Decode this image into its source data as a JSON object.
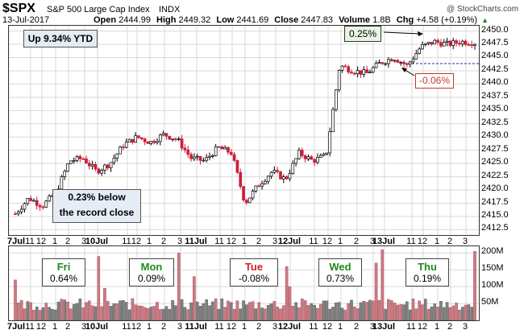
{
  "header": {
    "symbol": "$SPX",
    "name": "S&P 500 Large Cap Index",
    "exchange": "INDX",
    "date": "13-Jul-2017",
    "open_label": "Open",
    "open": "2444.99",
    "high_label": "High",
    "high": "2449.32",
    "low_label": "Low",
    "low": "2441.69",
    "close_label": "Close",
    "close": "2447.83",
    "volume_label": "Volume",
    "volume": "1.8B",
    "chg_label": "Chg",
    "chg": "+4.58 (+0.19%)",
    "watermark": "@ StockCharts.com"
  },
  "annotations": {
    "ytd": "Up 9.34% YTD",
    "record_line1": "0.23% below",
    "record_line2": "the record close",
    "gain_box": "0.25%",
    "loss_box": "-0.06%"
  },
  "day_boxes": [
    {
      "day": "Fri",
      "value": "0.64%",
      "color": "green"
    },
    {
      "day": "Mon",
      "value": "0.09%",
      "color": "green"
    },
    {
      "day": "Tue",
      "value": "-0.08%",
      "color": "red"
    },
    {
      "day": "Wed",
      "value": "0.73%",
      "color": "green"
    },
    {
      "day": "Thu",
      "value": "0.19%",
      "color": "green"
    }
  ],
  "colors": {
    "up": "#000000",
    "down": "#cc1f3a",
    "vol_up": "#808080",
    "vol_down": "#c97a82",
    "green_text": "#1e8a1e",
    "red_text": "#d32020",
    "dash": "#1f2ea8"
  },
  "chart_data": [
    {
      "type": "candlestick",
      "title": "$SPX S&P 500 Large Cap Index INDX",
      "ylim": [
        2411.5,
        2451
      ],
      "yticks": [
        "2412.5",
        "2415.0",
        "2417.5",
        "2420.0",
        "2422.5",
        "2425.0",
        "2427.5",
        "2430.0",
        "2432.5",
        "2435.0",
        "2437.5",
        "2440.0",
        "2442.5",
        "2445.0",
        "2447.5",
        "2450.0"
      ],
      "xticks": [
        "7Jul",
        "11",
        "12",
        "1",
        "2",
        "3",
        "10Jul",
        "11",
        "12",
        "1",
        "2",
        "3",
        "11Jul",
        "11",
        "12",
        "1",
        "2",
        "3",
        "12Jul",
        "11",
        "12",
        "1",
        "2",
        "3",
        "13Jul",
        "11",
        "12",
        "1",
        "2",
        "3"
      ],
      "reference_line": 2443.1,
      "days": [
        "7-Jul",
        "10-Jul",
        "11-Jul",
        "12-Jul",
        "13-Jul"
      ],
      "day_closes": [
        2425.2,
        2427.4,
        2425.5,
        2443.3,
        2447.8
      ],
      "path_points": [
        2415.5,
        2418.5,
        2417.0,
        2419.5,
        2425.5,
        2426.0,
        2423.5,
        2425.0,
        2428.5,
        2430.0,
        2429.0,
        2430.5,
        2429.5,
        2426.0,
        2425.5,
        2428.0,
        2427.0,
        2417.5,
        2421.0,
        2423.5,
        2422.0,
        2427.0,
        2425.5,
        2426.5,
        2443.5,
        2442.5,
        2442.0,
        2444.0,
        2445.0,
        2443.5,
        2447.0,
        2448.0,
        2447.5,
        2448.0,
        2447.8
      ],
      "marked_highs": [
        {
          "label": "0.25%",
          "value": 2448.6
        },
        {
          "label": "-0.06%",
          "value": 2441.8
        }
      ]
    },
    {
      "type": "bar",
      "title": "Volume",
      "ylim": [
        0,
        220
      ],
      "yticks": [
        "50M",
        "100M",
        "150M",
        "200M"
      ],
      "xticks": [
        "7Jul",
        "11",
        "12",
        "1",
        "2",
        "3",
        "10Jul",
        "11",
        "12",
        "1",
        "2",
        "3",
        "11Jul",
        "11",
        "12",
        "1",
        "2",
        "3",
        "12Jul",
        "11",
        "12",
        "1",
        "2",
        "3",
        "13Jul",
        "11",
        "12",
        "1",
        "2",
        "3"
      ],
      "spikes_millions": [
        120,
        190,
        95,
        200,
        130,
        160,
        100,
        170,
        210,
        205
      ]
    }
  ]
}
